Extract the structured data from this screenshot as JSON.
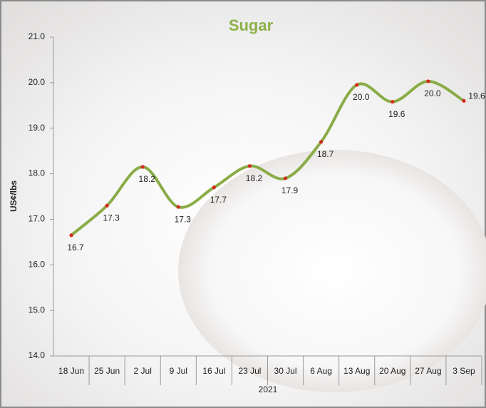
{
  "chart_data": {
    "type": "line",
    "title": "Sugar",
    "y_label": "US¢/lbs",
    "x_label": "2021",
    "categories": [
      "18 Jun",
      "25 Jun",
      "2 Jul",
      "9 Jul",
      "16 Jul",
      "23 Jul",
      "30 Jul",
      "6 Aug",
      "13 Aug",
      "20 Aug",
      "27 Aug",
      "3 Sep"
    ],
    "series": [
      {
        "name": "Sugar",
        "color": "#8aac47",
        "marker_color": "#d42a1e",
        "values": [
          16.65,
          17.3,
          18.15,
          17.27,
          17.7,
          18.17,
          17.9,
          18.7,
          19.95,
          19.58,
          20.03,
          19.6
        ],
        "value_labels": [
          "16.7",
          "17.3",
          "18.2",
          "17.3",
          "17.7",
          "18.2",
          "17.9",
          "18.7",
          "20.0",
          "19.6",
          "20.0",
          "19.6"
        ]
      }
    ],
    "ylim": [
      14,
      21
    ],
    "yticks": [
      {
        "value": 14,
        "label": "14.0"
      },
      {
        "value": 15,
        "label": "15.0"
      },
      {
        "value": 16,
        "label": "16.0"
      },
      {
        "value": 17,
        "label": "17.0"
      },
      {
        "value": 18,
        "label": "18.0"
      },
      {
        "value": 19,
        "label": "19.0"
      },
      {
        "value": 20,
        "label": "20.0"
      },
      {
        "value": 21,
        "label": "21.0"
      }
    ],
    "grid": false
  }
}
